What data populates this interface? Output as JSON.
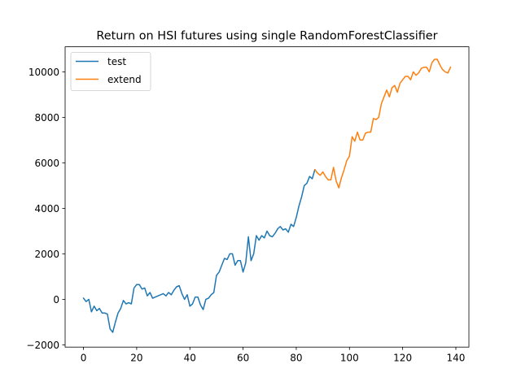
{
  "chart_data": {
    "type": "line",
    "title": "Return on HSI futures using single RandomForestClassifier",
    "xlabel": "",
    "ylabel": "",
    "xlim": [
      -6.9,
      144.9
    ],
    "ylim": [
      -2100,
      11100
    ],
    "xticks": [
      0,
      20,
      40,
      60,
      80,
      100,
      120,
      140
    ],
    "yticks": [
      -2000,
      0,
      2000,
      4000,
      6000,
      8000,
      10000
    ],
    "xtick_labels": [
      "0",
      "20",
      "40",
      "60",
      "80",
      "100",
      "120",
      "140"
    ],
    "ytick_labels": [
      "−2000",
      "0",
      "2000",
      "4000",
      "6000",
      "8000",
      "10000"
    ],
    "grid": false,
    "legend_position": "upper left",
    "series": [
      {
        "name": "test",
        "color": "#1f77b4",
        "x": [
          0,
          1,
          2,
          3,
          4,
          5,
          6,
          7,
          8,
          9,
          10,
          11,
          12,
          13,
          14,
          15,
          16,
          17,
          18,
          19,
          20,
          21,
          22,
          23,
          24,
          25,
          26,
          27,
          28,
          29,
          30,
          31,
          32,
          33,
          34,
          35,
          36,
          37,
          38,
          39,
          40,
          41,
          42,
          43,
          44,
          45,
          46,
          47,
          48,
          49,
          50,
          51,
          52,
          53,
          54,
          55,
          56,
          57,
          58,
          59,
          60,
          61,
          62,
          63,
          64,
          65,
          66,
          67,
          68,
          69,
          70,
          71,
          72,
          73,
          74,
          75,
          76,
          77,
          78,
          79,
          80,
          81,
          82,
          83,
          84,
          85,
          86,
          87
        ],
        "y": [
          50,
          -100,
          0,
          -550,
          -300,
          -500,
          -400,
          -600,
          -600,
          -650,
          -1300,
          -1450,
          -1000,
          -600,
          -400,
          -50,
          -200,
          -150,
          -200,
          500,
          650,
          650,
          450,
          500,
          150,
          300,
          50,
          100,
          150,
          200,
          250,
          150,
          300,
          200,
          400,
          550,
          600,
          250,
          0,
          200,
          -300,
          -200,
          100,
          100,
          -250,
          -450,
          0,
          50,
          200,
          300,
          1050,
          1200,
          1500,
          1800,
          1750,
          2000,
          2000,
          1500,
          1700,
          1700,
          1200,
          1600,
          2750,
          1700,
          2000,
          2800,
          2600,
          2800,
          2700,
          3000,
          2800,
          2750,
          2900,
          3100,
          3200,
          3050,
          3100,
          2950,
          3300,
          3200,
          3600,
          4100,
          4500,
          5000,
          5100,
          5400,
          5300,
          5700
        ]
      },
      {
        "name": "extend",
        "color": "#ff7f0e",
        "x": [
          87,
          88,
          89,
          90,
          91,
          92,
          93,
          94,
          95,
          96,
          97,
          98,
          99,
          100,
          101,
          102,
          103,
          104,
          105,
          106,
          107,
          108,
          109,
          110,
          111,
          112,
          113,
          114,
          115,
          116,
          117,
          118,
          119,
          120,
          121,
          122,
          123,
          124,
          125,
          126,
          127,
          128,
          129,
          130,
          131,
          132,
          133,
          134,
          135,
          136,
          137,
          138
        ],
        "y": [
          5700,
          5550,
          5450,
          5600,
          5400,
          5250,
          5250,
          5800,
          5200,
          4900,
          5350,
          5700,
          6100,
          6300,
          7150,
          6950,
          7350,
          7000,
          7000,
          7300,
          7350,
          7350,
          7950,
          7900,
          8000,
          8600,
          8900,
          9200,
          8900,
          9300,
          9400,
          9100,
          9500,
          9650,
          9800,
          9800,
          9650,
          10000,
          9850,
          9950,
          10150,
          10200,
          10200,
          10000,
          10400,
          10550,
          10550,
          10300,
          10100,
          10000,
          9950,
          10200
        ]
      }
    ]
  }
}
